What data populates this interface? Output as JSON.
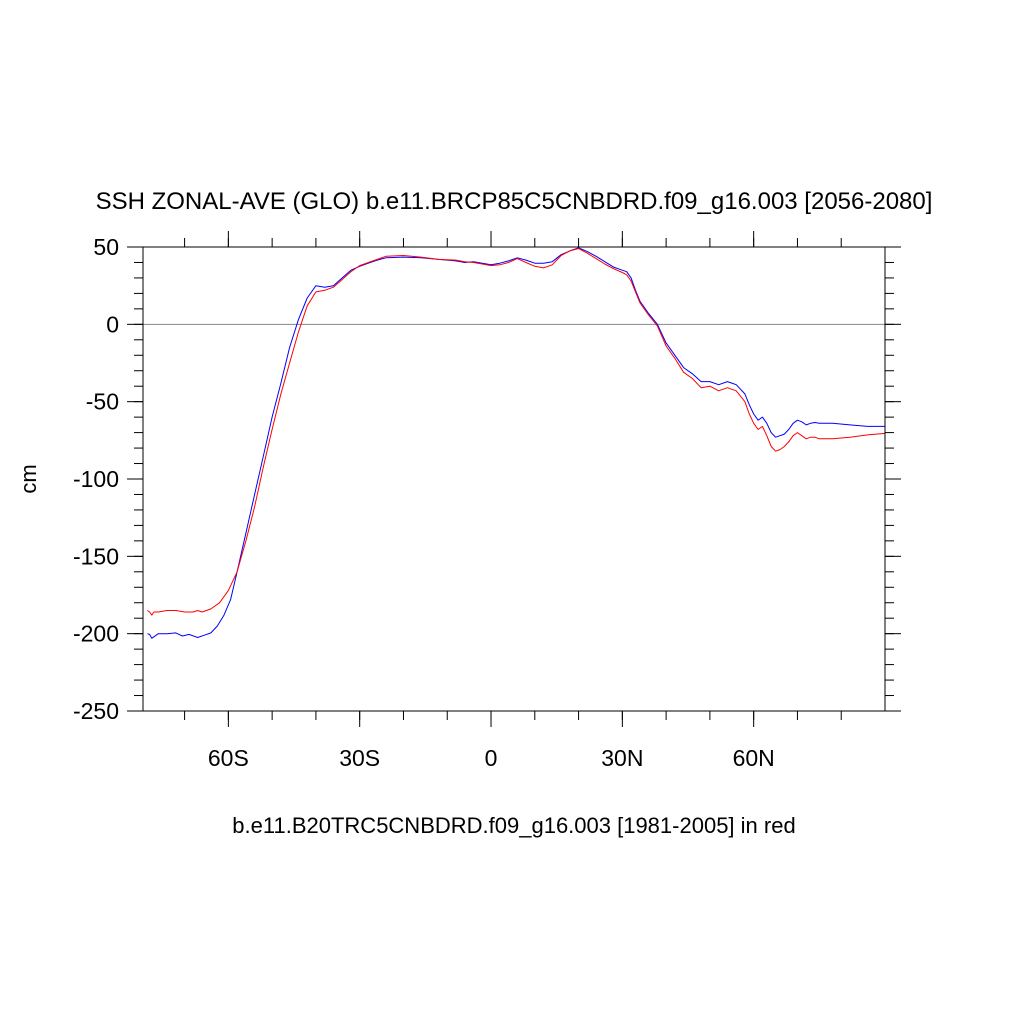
{
  "chart_data": {
    "type": "line",
    "title": "SSH ZONAL-AVE (GLO) b.e11.BRCP85C5CNBDRD.f09_g16.003 [2056-2080]",
    "xlabel": "b.e11.B20TRC5CNBDRD.f09_g16.003 [1981-2005] in red",
    "ylabel": "cm",
    "xlim": [
      -79.5,
      90
    ],
    "ylim": [
      -250,
      50
    ],
    "x_ticks": [
      {
        "value": -60,
        "label": "60S"
      },
      {
        "value": -30,
        "label": "30S"
      },
      {
        "value": 0,
        "label": "0"
      },
      {
        "value": 30,
        "label": "30N"
      },
      {
        "value": 60,
        "label": "60N"
      }
    ],
    "y_ticks": [
      {
        "value": 50,
        "label": "50"
      },
      {
        "value": 0,
        "label": "0"
      },
      {
        "value": -50,
        "label": "-50"
      },
      {
        "value": -100,
        "label": "-100"
      },
      {
        "value": -150,
        "label": "-150"
      },
      {
        "value": -200,
        "label": "-200"
      },
      {
        "value": -250,
        "label": "-250"
      }
    ],
    "reference_line": 0,
    "grid": false,
    "series": [
      {
        "color": "#0000ff",
        "x": [
          -78.5,
          -78,
          -77.5,
          -76,
          -74,
          -72,
          -70.5,
          -69,
          -67,
          -65.5,
          -64,
          -62.5,
          -61,
          -59.5,
          -58,
          -56,
          -54,
          -52,
          -50,
          -48,
          -46,
          -44,
          -42,
          -40,
          -38,
          -36,
          -34,
          -32,
          -30,
          -28,
          -26,
          -24,
          -20,
          -16,
          -12,
          -8,
          -6,
          -4,
          -2,
          0,
          2,
          4,
          6,
          8,
          10,
          12,
          14,
          16,
          18,
          20,
          22,
          24,
          26,
          28,
          30,
          31,
          32,
          33,
          34,
          36,
          38,
          40,
          42,
          44,
          46,
          48,
          50,
          52,
          54,
          55,
          56,
          58,
          59,
          60,
          61,
          62,
          63,
          64,
          65,
          66,
          67,
          68,
          69,
          70,
          71,
          72,
          73,
          74,
          75,
          78,
          82,
          86,
          90
        ],
        "y": [
          -200,
          -200.5,
          -203,
          -200,
          -200,
          -199.5,
          -201.5,
          -200.5,
          -202.5,
          -201,
          -199.5,
          -195,
          -188,
          -178,
          -160,
          -135,
          -110,
          -85,
          -60,
          -38,
          -15,
          3,
          17,
          25,
          24,
          25,
          30,
          35,
          37.5,
          39.5,
          41.5,
          43,
          43.5,
          43,
          42,
          41,
          40,
          40.5,
          39.5,
          38.5,
          39.5,
          41,
          43,
          41.5,
          39.5,
          39.5,
          40.5,
          45,
          47.5,
          49.5,
          47,
          44,
          40.5,
          37,
          35,
          34,
          30,
          22,
          15,
          7,
          0,
          -12,
          -20,
          -28,
          -32,
          -37,
          -37,
          -39,
          -37,
          -38,
          -39,
          -45,
          -52,
          -58,
          -62,
          -60,
          -64,
          -70,
          -73,
          -72,
          -71,
          -68,
          -64,
          -62,
          -63,
          -65,
          -64,
          -63.5,
          -64,
          -64,
          -65,
          -66,
          -66
        ]
      },
      {
        "color": "#ff0000",
        "x": [
          -78.5,
          -78,
          -77.5,
          -77,
          -76,
          -74,
          -72,
          -70,
          -68,
          -67,
          -66,
          -64,
          -62,
          -60,
          -58,
          -56,
          -54,
          -52,
          -50,
          -48,
          -46,
          -44,
          -42,
          -40,
          -38,
          -36,
          -34,
          -32,
          -30,
          -28,
          -26,
          -24,
          -20,
          -16,
          -12,
          -8,
          -6,
          -4,
          -2,
          0,
          2,
          4,
          6,
          8,
          10,
          12,
          14,
          16,
          18,
          20,
          22,
          24,
          26,
          28,
          30,
          31,
          32,
          33,
          34,
          36,
          38,
          40,
          42,
          44,
          46,
          48,
          50,
          52,
          54,
          55,
          56,
          58,
          59,
          60,
          61,
          62,
          63,
          64,
          65,
          66,
          67,
          68,
          69,
          70,
          71,
          72,
          73,
          74,
          75,
          78,
          82,
          86,
          90
        ],
        "y": [
          -185,
          -186,
          -188,
          -186,
          -186,
          -185,
          -185,
          -186,
          -186,
          -185,
          -186,
          -184,
          -180,
          -172,
          -160,
          -140,
          -118,
          -92,
          -68,
          -45,
          -25,
          -5,
          12,
          21,
          22,
          24,
          29,
          34,
          38,
          40,
          42,
          44,
          44.5,
          43.5,
          42,
          41.5,
          40.5,
          40,
          39,
          38,
          38.5,
          40,
          42.5,
          40,
          37.5,
          36.5,
          38.5,
          44.5,
          47.5,
          49,
          46,
          42.5,
          39,
          36,
          33.5,
          32,
          28,
          21,
          14,
          6,
          -1,
          -14,
          -22,
          -31,
          -35,
          -41,
          -40,
          -43,
          -41,
          -42,
          -43,
          -50,
          -58,
          -64,
          -68,
          -66,
          -72,
          -79,
          -82,
          -81,
          -79,
          -76,
          -72,
          -70,
          -72,
          -74,
          -73,
          -73,
          -74,
          -74,
          -73,
          -71.5,
          -70.5
        ]
      }
    ]
  }
}
